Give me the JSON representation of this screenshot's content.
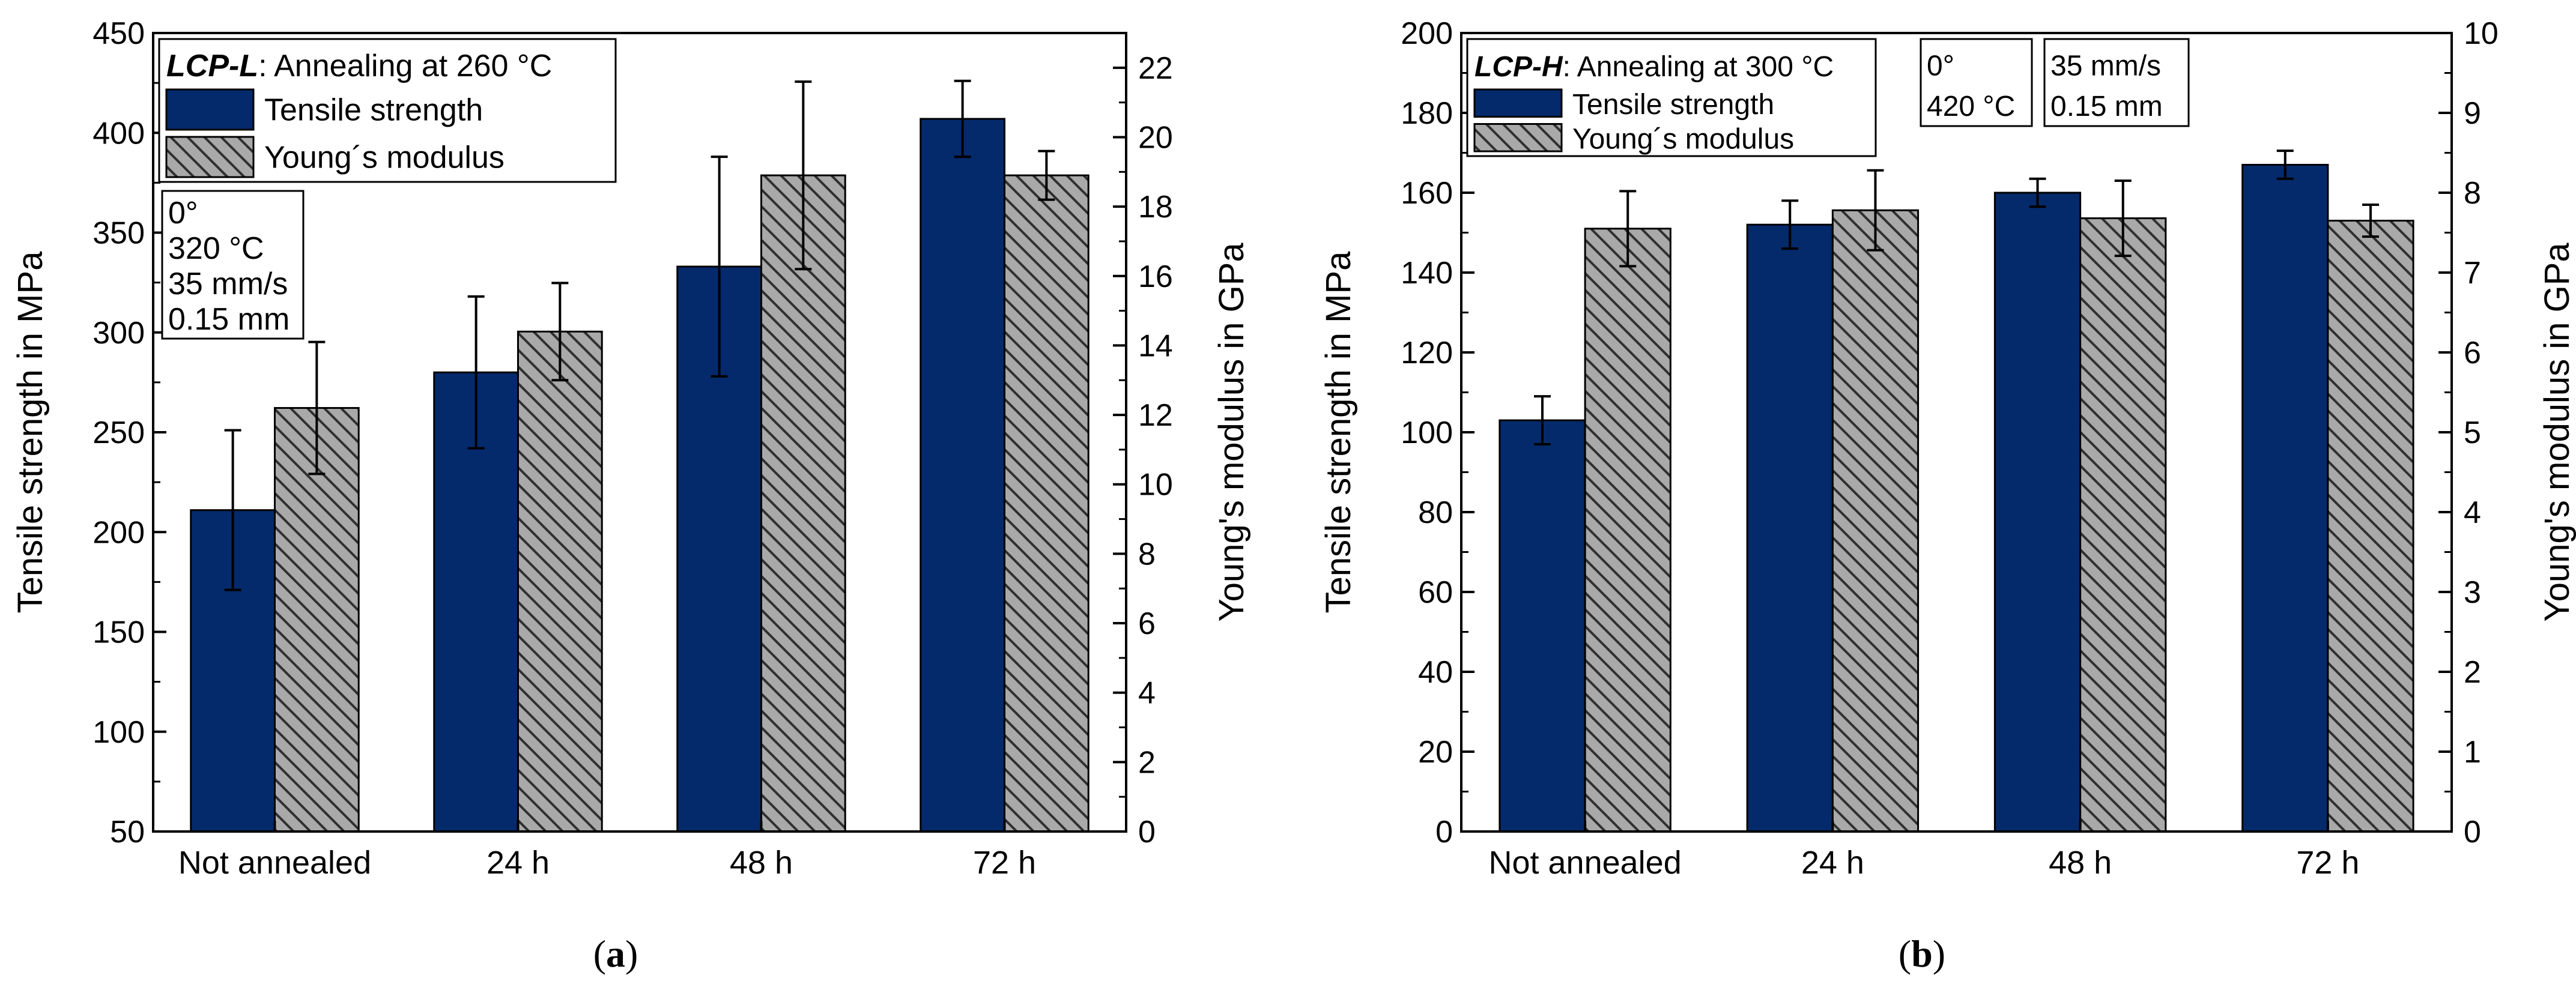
{
  "colors": {
    "tensile": "#042a6b",
    "young": "#a9a9a9",
    "hatch": "#303030",
    "axis": "#000000",
    "background": "#ffffff"
  },
  "chart_data": [
    {
      "type": "bar",
      "panel_label": "a",
      "categories": [
        "Not annealed",
        "24 h",
        "48 h",
        "72 h"
      ],
      "ylabel": "Tensile strength in MPa",
      "ylabel_right": "Young's modulus in GPa",
      "ylim": [
        50,
        450
      ],
      "ylim_right": [
        0,
        23
      ],
      "yticks": [
        "50",
        "100",
        "150",
        "200",
        "250",
        "300",
        "350",
        "400",
        "450"
      ],
      "yticks_right": [
        "0",
        "2",
        "4",
        "6",
        "8",
        "10",
        "12",
        "14",
        "16",
        "18",
        "20",
        "22"
      ],
      "legend": {
        "title_bold": "LCP-L",
        "title_rest": ": Annealing at 260 °C",
        "position": "top-left"
      },
      "series": [
        {
          "name": "Tensile strength",
          "axis": "left",
          "values": [
            211,
            280,
            333,
            407
          ],
          "errors": [
            40,
            38,
            55,
            19
          ]
        },
        {
          "name": "Young´s modulus",
          "axis": "right",
          "values": [
            12.2,
            14.4,
            18.9,
            18.9
          ],
          "errors": [
            1.9,
            1.4,
            2.7,
            0.7
          ]
        }
      ],
      "annotations": [
        {
          "lines": [
            "0°",
            "320 °C",
            "35 mm/s",
            "0.15 mm"
          ]
        }
      ]
    },
    {
      "type": "bar",
      "panel_label": "b",
      "categories": [
        "Not annealed",
        "24 h",
        "48 h",
        "72 h"
      ],
      "ylabel": "Tensile strength in MPa",
      "ylabel_right": "Young's modulus in GPa",
      "ylim": [
        0,
        200
      ],
      "ylim_right": [
        0,
        10
      ],
      "yticks": [
        "0",
        "20",
        "40",
        "60",
        "80",
        "100",
        "120",
        "140",
        "160",
        "180",
        "200"
      ],
      "yticks_right": [
        "0",
        "1",
        "2",
        "3",
        "4",
        "5",
        "6",
        "7",
        "8",
        "9",
        "10"
      ],
      "legend": {
        "title_bold": "LCP-H",
        "title_rest": ": Annealing at 300 °C",
        "position": "top-left"
      },
      "series": [
        {
          "name": "Tensile strength",
          "axis": "left",
          "values": [
            103,
            152,
            160,
            167
          ],
          "errors": [
            6,
            6,
            3.5,
            3.5
          ]
        },
        {
          "name": "Young´s modulus",
          "axis": "right",
          "values": [
            7.55,
            7.78,
            7.68,
            7.65
          ],
          "errors": [
            0.47,
            0.5,
            0.47,
            0.2
          ]
        }
      ],
      "annotations": [
        {
          "lines": [
            "0°",
            "420 °C"
          ]
        },
        {
          "lines": [
            "35 mm/s",
            "0.15 mm"
          ]
        }
      ]
    }
  ]
}
